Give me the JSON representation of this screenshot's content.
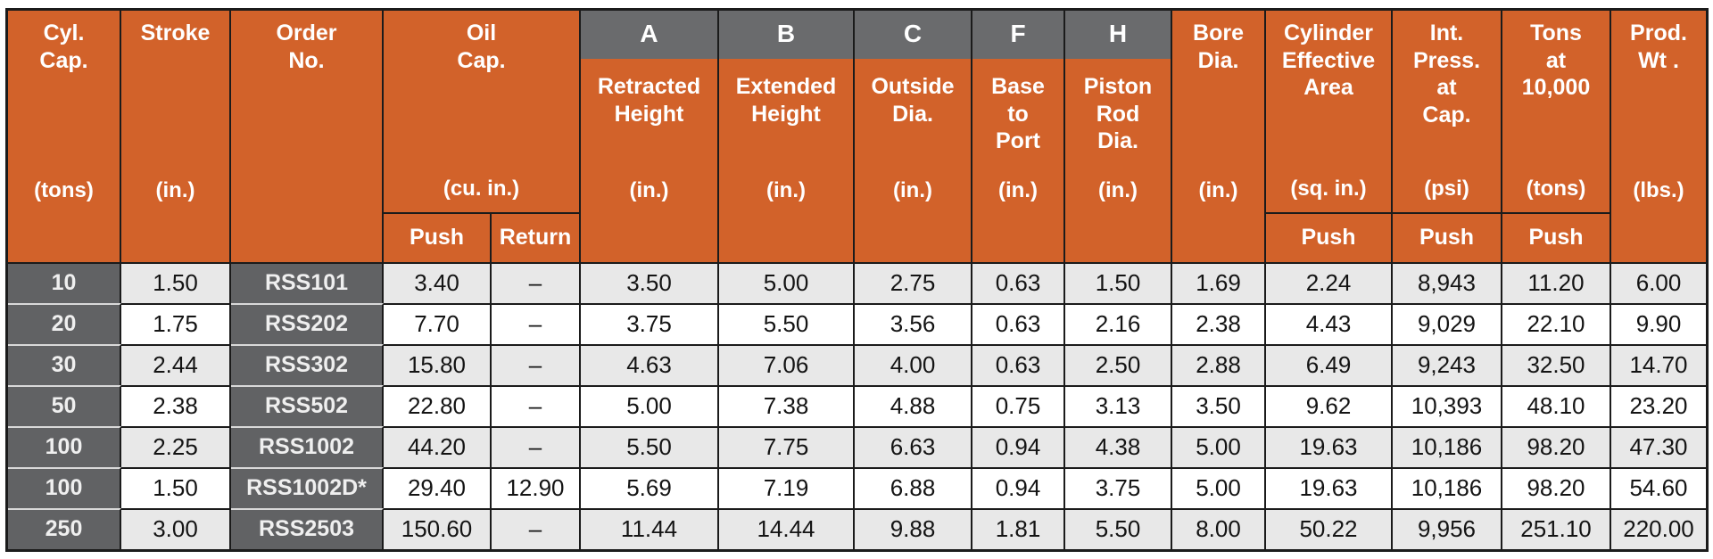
{
  "colors": {
    "header_orange": "#d2622a",
    "letter_gray": "#6a6b6d",
    "dark_cell_gray": "#616264",
    "stripe_light": "#e8e8e8",
    "stripe_white": "#ffffff",
    "grid_line": "#1b1b1b",
    "header_text": "#ffffff",
    "body_text": "#141414"
  },
  "table": {
    "header": {
      "cyl_cap": {
        "title": "Cyl.\nCap.",
        "unit": "(tons)"
      },
      "stroke": {
        "title": "Stroke",
        "unit": "(in.)"
      },
      "order_no": {
        "title": "Order\nNo."
      },
      "oil_cap": {
        "title": "Oil\nCap.",
        "unit": "(cu. in.)",
        "sub_push": "Push",
        "sub_return": "Return"
      },
      "col_a": {
        "letter": "A",
        "title": "Retracted\nHeight",
        "unit": "(in.)"
      },
      "col_b": {
        "letter": "B",
        "title": "Extended\nHeight",
        "unit": "(in.)"
      },
      "col_c": {
        "letter": "C",
        "title": "Outside\nDia.",
        "unit": "(in.)"
      },
      "col_f": {
        "letter": "F",
        "title": "Base\nto\nPort",
        "unit": "(in.)"
      },
      "col_h": {
        "letter": "H",
        "title": "Piston\nRod\nDia.",
        "unit": "(in.)"
      },
      "bore_dia": {
        "title": "Bore\nDia.",
        "unit": "(in.)"
      },
      "cyl_eff": {
        "title": "Cylinder\nEffective\nArea",
        "unit": "(sq. in.)",
        "sub": "Push"
      },
      "int_press": {
        "title": "Int.\nPress.\nat\nCap.",
        "unit": "(psi)",
        "sub": "Push"
      },
      "tons_at": {
        "title": "Tons\nat\n10,000",
        "unit": "(tons)",
        "sub": "Push"
      },
      "prod_wt": {
        "title": "Prod.\nWt .",
        "unit": "(lbs.)"
      }
    }
  },
  "chart_data": {
    "type": "table",
    "columns": [
      "Cyl. Cap. (tons)",
      "Stroke (in.)",
      "Order No.",
      "Oil Cap. Push (cu. in.)",
      "Oil Cap. Return (cu. in.)",
      "A Retracted Height (in.)",
      "B Extended Height (in.)",
      "C Outside Dia. (in.)",
      "F Base to Port (in.)",
      "H Piston Rod Dia. (in.)",
      "Bore Dia. (in.)",
      "Cylinder Effective Area Push (sq. in.)",
      "Int. Press. at Cap. Push (psi)",
      "Tons at 10,000 Push (tons)",
      "Prod. Wt. (lbs.)"
    ],
    "rows": [
      [
        "10",
        "1.50",
        "RSS101",
        "3.40",
        "–",
        "3.50",
        "5.00",
        "2.75",
        "0.63",
        "1.50",
        "1.69",
        "2.24",
        "8,943",
        "11.20",
        "6.00"
      ],
      [
        "20",
        "1.75",
        "RSS202",
        "7.70",
        "–",
        "3.75",
        "5.50",
        "3.56",
        "0.63",
        "2.16",
        "2.38",
        "4.43",
        "9,029",
        "22.10",
        "9.90"
      ],
      [
        "30",
        "2.44",
        "RSS302",
        "15.80",
        "–",
        "4.63",
        "7.06",
        "4.00",
        "0.63",
        "2.50",
        "2.88",
        "6.49",
        "9,243",
        "32.50",
        "14.70"
      ],
      [
        "50",
        "2.38",
        "RSS502",
        "22.80",
        "–",
        "5.00",
        "7.38",
        "4.88",
        "0.75",
        "3.13",
        "3.50",
        "9.62",
        "10,393",
        "48.10",
        "23.20"
      ],
      [
        "100",
        "2.25",
        "RSS1002",
        "44.20",
        "–",
        "5.50",
        "7.75",
        "6.63",
        "0.94",
        "4.38",
        "5.00",
        "19.63",
        "10,186",
        "98.20",
        "47.30"
      ],
      [
        "100",
        "1.50",
        "RSS1002D*",
        "29.40",
        "12.90",
        "5.69",
        "7.19",
        "6.88",
        "0.94",
        "3.75",
        "5.00",
        "19.63",
        "10,186",
        "98.20",
        "54.60"
      ],
      [
        "250",
        "3.00",
        "RSS2503",
        "150.60",
        "–",
        "11.44",
        "14.44",
        "9.88",
        "1.81",
        "5.50",
        "8.00",
        "50.22",
        "9,956",
        "251.10",
        "220.00"
      ]
    ]
  }
}
